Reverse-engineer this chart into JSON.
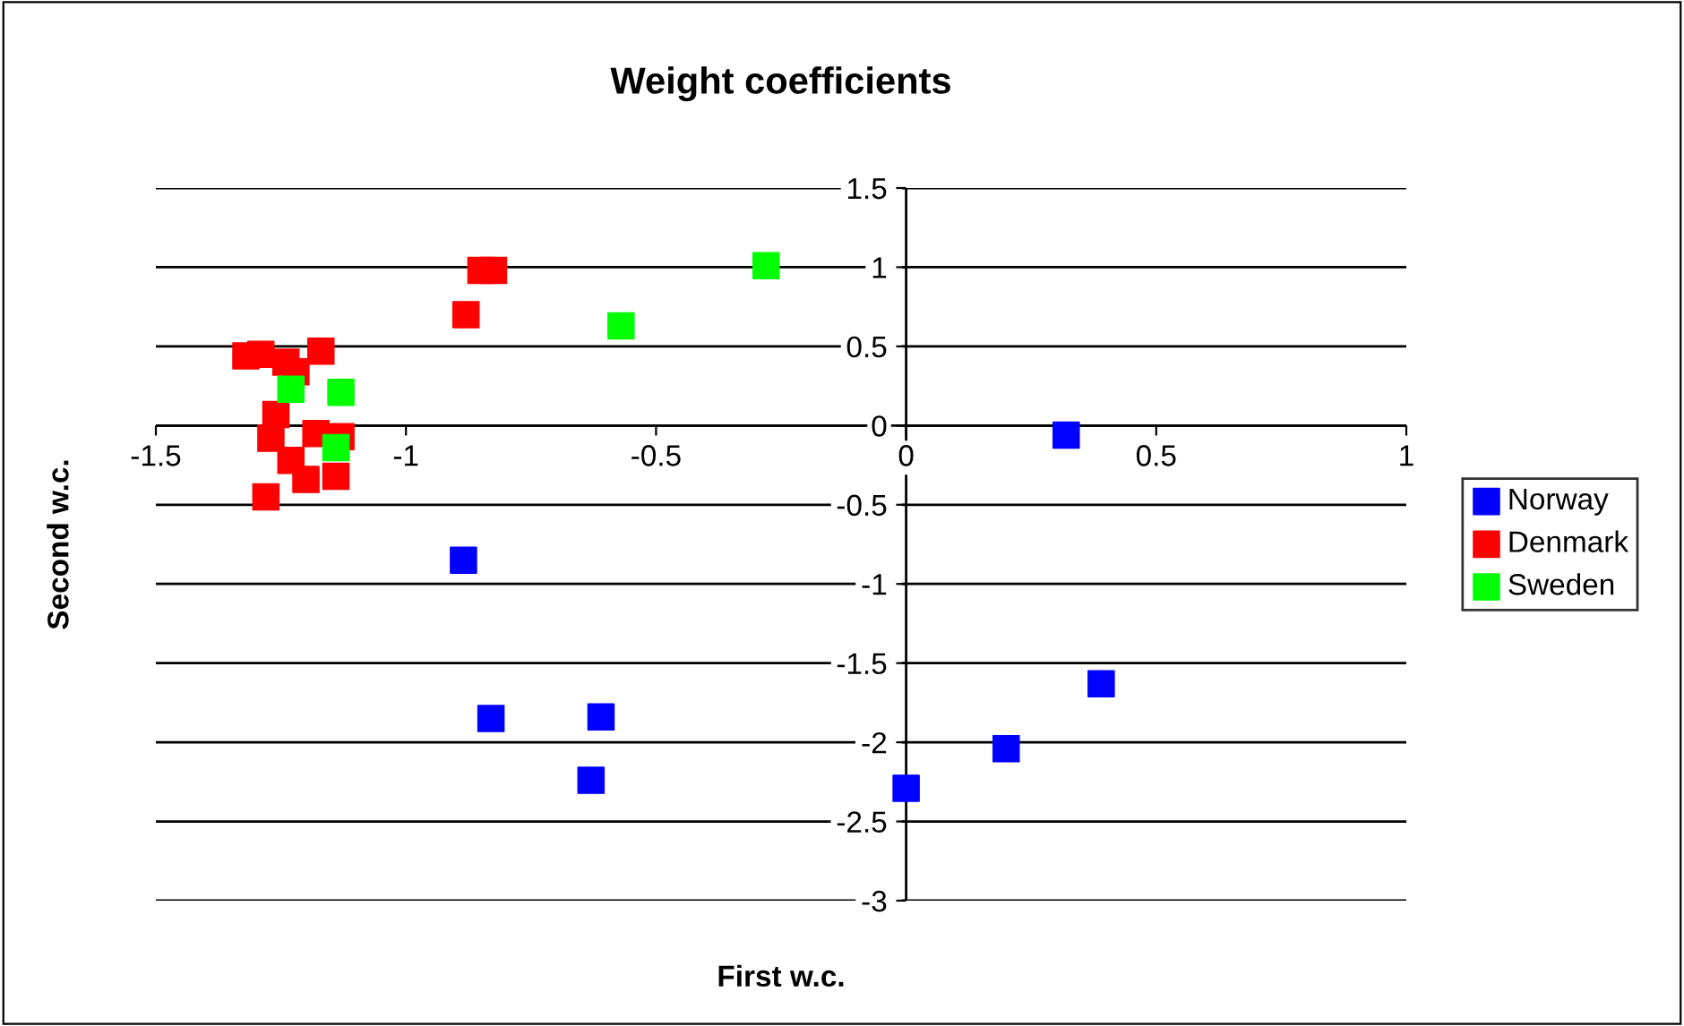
{
  "chart_data": {
    "type": "scatter",
    "title": "Weight coefficients",
    "xlabel": "First w.c.",
    "ylabel": "Second w.c.",
    "xlim": [
      -1.5,
      1
    ],
    "xticks": [
      -1.5,
      -1,
      -0.5,
      0,
      0.5,
      1
    ],
    "ylim": [
      -3,
      1.5
    ],
    "yticks": [
      -3,
      -2.5,
      -2,
      -1.5,
      -1,
      -0.5,
      0,
      0.5,
      1,
      1.5
    ],
    "grid": "y",
    "legend": "right",
    "marker": "square",
    "series": [
      {
        "name": "Norway",
        "color": "#0000ff",
        "x": [
          -0.885,
          -0.83,
          -0.61,
          -0.63,
          0.0,
          0.2,
          0.39,
          0.32
        ],
        "values": [
          -0.85,
          -1.85,
          -1.84,
          -2.24,
          -2.29,
          -2.04,
          -1.63,
          -0.06
        ]
      },
      {
        "name": "Denmark",
        "color": "#ff0000",
        "x": [
          -0.85,
          -0.825,
          -0.88,
          -1.32,
          -1.29,
          -1.24,
          -1.22,
          -1.17,
          -1.26,
          -1.27,
          -1.18,
          -1.13,
          -1.23,
          -1.2,
          -1.14,
          -1.28
        ],
        "values": [
          0.98,
          0.98,
          0.7,
          0.44,
          0.45,
          0.4,
          0.34,
          0.47,
          0.07,
          -0.08,
          -0.05,
          -0.07,
          -0.22,
          -0.34,
          -0.32,
          -0.45
        ]
      },
      {
        "name": "Sweden",
        "color": "#00ff00",
        "x": [
          -1.23,
          -1.13,
          -1.14,
          -0.57,
          -0.28
        ],
        "values": [
          0.23,
          0.21,
          -0.14,
          0.63,
          1.01
        ]
      }
    ]
  }
}
